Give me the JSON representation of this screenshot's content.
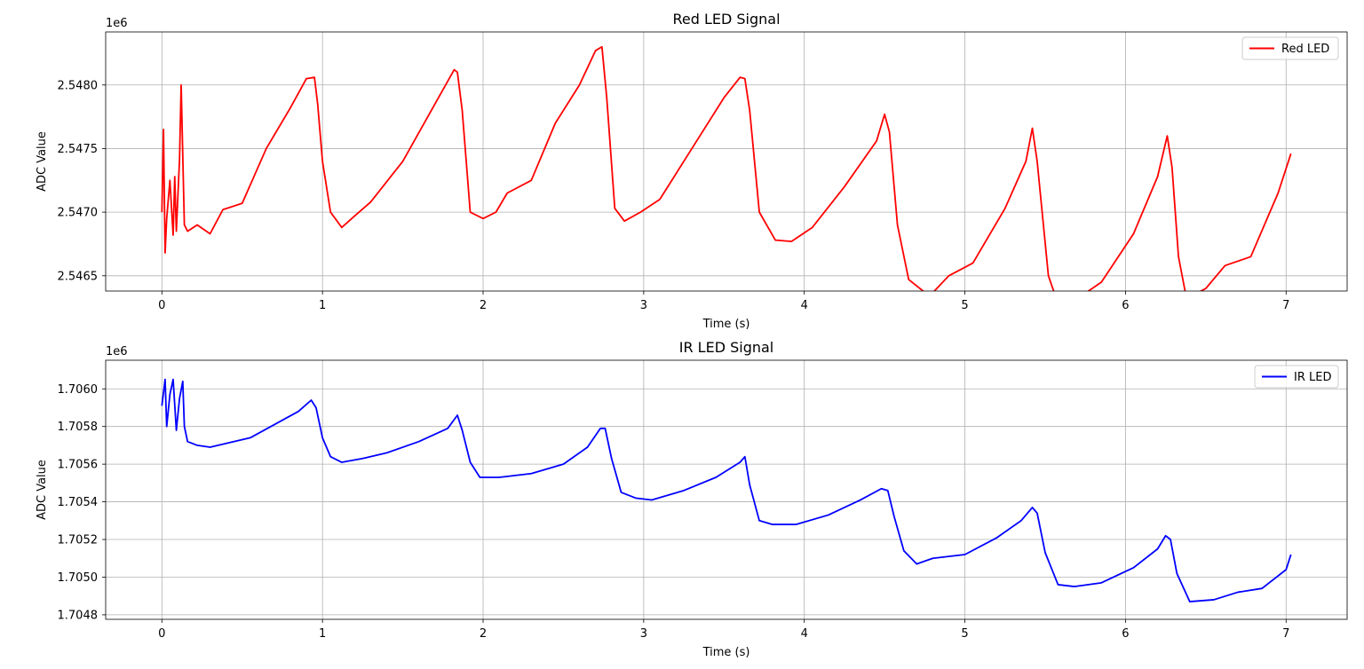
{
  "chart_data": [
    {
      "type": "line",
      "title": "Red LED Signal",
      "xlabel": "Time (s)",
      "ylabel": "ADC Value",
      "offset_text": "1e6",
      "xlim": [
        -0.35,
        7.38
      ],
      "ylim": [
        2.54638,
        2.548417
      ],
      "xticks": [
        0,
        1,
        2,
        3,
        4,
        5,
        6,
        7
      ],
      "xtick_labels": [
        "0",
        "1",
        "2",
        "3",
        "4",
        "5",
        "6",
        "7"
      ],
      "yticks": [
        2.5465,
        2.547,
        2.5475,
        2.548
      ],
      "ytick_labels": [
        "2.5465",
        "2.5470",
        "2.5475",
        "2.5480"
      ],
      "grid": true,
      "legend_position": "upper right",
      "series": [
        {
          "name": "Red LED",
          "color": "#ff0000",
          "x": [
            0,
            0.01,
            0.02,
            0.03,
            0.05,
            0.07,
            0.08,
            0.09,
            0.11,
            0.12,
            0.14,
            0.16,
            0.22,
            0.3,
            0.38,
            0.5,
            0.65,
            0.8,
            0.9,
            0.95,
            0.97,
            1.0,
            1.05,
            1.12,
            1.2,
            1.3,
            1.5,
            1.7,
            1.82,
            1.84,
            1.87,
            1.92,
            2.0,
            2.08,
            2.15,
            2.3,
            2.45,
            2.6,
            2.7,
            2.74,
            2.77,
            2.82,
            2.88,
            2.98,
            3.1,
            3.3,
            3.5,
            3.6,
            3.63,
            3.66,
            3.72,
            3.82,
            3.92,
            4.05,
            4.25,
            4.45,
            4.5,
            4.53,
            4.58,
            4.65,
            4.78,
            4.9,
            5.05,
            5.25,
            5.38,
            5.42,
            5.45,
            5.52,
            5.58,
            5.7,
            5.85,
            6.05,
            6.2,
            6.26,
            6.29,
            6.33,
            6.38,
            6.5,
            6.62,
            6.78,
            6.95,
            7.03
          ],
          "y": [
            2.547,
            2.54765,
            2.54668,
            2.54695,
            2.54725,
            2.54682,
            2.54728,
            2.54685,
            2.54742,
            2.548,
            2.5469,
            2.54685,
            2.5469,
            2.54683,
            2.54702,
            2.54707,
            2.5475,
            2.54782,
            2.54805,
            2.54806,
            2.54785,
            2.5474,
            2.547,
            2.54688,
            2.54697,
            2.54708,
            2.5474,
            2.54785,
            2.54812,
            2.5481,
            2.5478,
            2.547,
            2.54695,
            2.547,
            2.54715,
            2.54725,
            2.5477,
            2.548,
            2.54827,
            2.5483,
            2.5479,
            2.54703,
            2.54693,
            2.547,
            2.5471,
            2.5475,
            2.5479,
            2.54806,
            2.54805,
            2.5478,
            2.547,
            2.54678,
            2.54677,
            2.54688,
            2.5472,
            2.54756,
            2.54777,
            2.54763,
            2.5469,
            2.54647,
            2.54634,
            2.5465,
            2.5466,
            2.54703,
            2.5474,
            2.54766,
            2.5474,
            2.5465,
            2.54628,
            2.54632,
            2.54645,
            2.54683,
            2.54728,
            2.5476,
            2.54735,
            2.54665,
            2.54632,
            2.5464,
            2.54658,
            2.54665,
            2.54715,
            2.54746
          ]
        }
      ]
    },
    {
      "type": "line",
      "title": "IR LED Signal",
      "xlabel": "Time (s)",
      "ylabel": "ADC Value",
      "offset_text": "1e6",
      "xlim": [
        -0.35,
        7.38
      ],
      "ylim": [
        1.704776,
        1.706152
      ],
      "xticks": [
        0,
        1,
        2,
        3,
        4,
        5,
        6,
        7
      ],
      "xtick_labels": [
        "0",
        "1",
        "2",
        "3",
        "4",
        "5",
        "6",
        "7"
      ],
      "yticks": [
        1.7048,
        1.705,
        1.7052,
        1.7054,
        1.7056,
        1.7058,
        1.706
      ],
      "ytick_labels": [
        "1.7048",
        "1.7050",
        "1.7052",
        "1.7054",
        "1.7056",
        "1.7058",
        "1.7060"
      ],
      "grid": true,
      "legend_position": "upper right",
      "series": [
        {
          "name": "IR LED",
          "color": "#0000ff",
          "x": [
            0,
            0.02,
            0.03,
            0.05,
            0.07,
            0.09,
            0.11,
            0.13,
            0.14,
            0.16,
            0.22,
            0.3,
            0.4,
            0.55,
            0.7,
            0.85,
            0.93,
            0.96,
            1.0,
            1.05,
            1.12,
            1.25,
            1.4,
            1.6,
            1.78,
            1.84,
            1.87,
            1.92,
            1.98,
            2.1,
            2.3,
            2.5,
            2.65,
            2.73,
            2.76,
            2.8,
            2.86,
            2.95,
            3.05,
            3.25,
            3.45,
            3.6,
            3.63,
            3.66,
            3.72,
            3.8,
            3.95,
            4.15,
            4.35,
            4.48,
            4.52,
            4.56,
            4.62,
            4.7,
            4.8,
            5.0,
            5.2,
            5.35,
            5.42,
            5.45,
            5.5,
            5.58,
            5.68,
            5.85,
            6.05,
            6.2,
            6.25,
            6.28,
            6.32,
            6.4,
            6.55,
            6.7,
            6.85,
            7.0,
            7.03
          ],
          "y": [
            1.70591,
            1.70605,
            1.7058,
            1.70597,
            1.70605,
            1.70578,
            1.70595,
            1.70604,
            1.7058,
            1.70572,
            1.7057,
            1.70569,
            1.70571,
            1.70574,
            1.70581,
            1.70588,
            1.70594,
            1.7059,
            1.70574,
            1.70564,
            1.70561,
            1.70563,
            1.70566,
            1.70572,
            1.70579,
            1.70586,
            1.70578,
            1.70561,
            1.70553,
            1.70553,
            1.70555,
            1.7056,
            1.70569,
            1.70579,
            1.70579,
            1.70563,
            1.70545,
            1.70542,
            1.70541,
            1.70546,
            1.70553,
            1.70561,
            1.70564,
            1.70549,
            1.7053,
            1.70528,
            1.70528,
            1.70533,
            1.70541,
            1.70547,
            1.70546,
            1.70532,
            1.70514,
            1.70507,
            1.7051,
            1.70512,
            1.70521,
            1.7053,
            1.70537,
            1.70534,
            1.70513,
            1.70496,
            1.70495,
            1.70497,
            1.70505,
            1.70515,
            1.70522,
            1.7052,
            1.70502,
            1.70487,
            1.70488,
            1.70492,
            1.70494,
            1.70504,
            1.70512
          ]
        }
      ]
    }
  ]
}
